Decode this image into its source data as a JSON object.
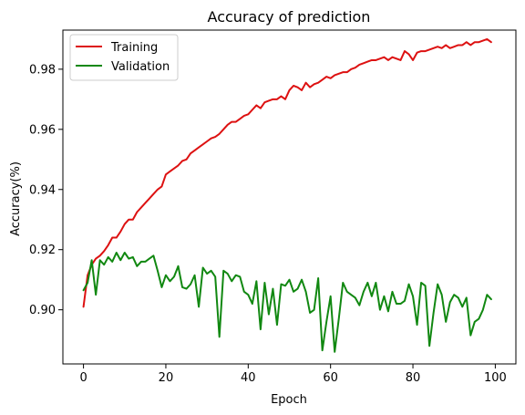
{
  "chart_data": {
    "type": "line",
    "title": "Accuracy of prediction",
    "xlabel": "Epoch",
    "ylabel": "Accuracy(%)",
    "xlim": [
      -5,
      105
    ],
    "ylim": [
      0.882,
      0.993
    ],
    "xticks": [
      0,
      20,
      40,
      60,
      80,
      100
    ],
    "yticks": [
      0.9,
      0.92,
      0.94,
      0.96,
      0.98
    ],
    "ytick_labels": [
      "0.90",
      "0.92",
      "0.94",
      "0.96",
      "0.98"
    ],
    "grid": false,
    "legend_position": "upper-left",
    "series": [
      {
        "name": "Training",
        "color": "#dd1111",
        "x": [
          0,
          1,
          2,
          3,
          4,
          5,
          6,
          7,
          8,
          9,
          10,
          11,
          12,
          13,
          14,
          15,
          16,
          17,
          18,
          19,
          20,
          21,
          22,
          23,
          24,
          25,
          26,
          27,
          28,
          29,
          30,
          31,
          32,
          33,
          34,
          35,
          36,
          37,
          38,
          39,
          40,
          41,
          42,
          43,
          44,
          45,
          46,
          47,
          48,
          49,
          50,
          51,
          52,
          53,
          54,
          55,
          56,
          57,
          58,
          59,
          60,
          61,
          62,
          63,
          64,
          65,
          66,
          67,
          68,
          69,
          70,
          71,
          72,
          73,
          74,
          75,
          76,
          77,
          78,
          79,
          80,
          81,
          82,
          83,
          84,
          85,
          86,
          87,
          88,
          89,
          90,
          91,
          92,
          93,
          94,
          95,
          96,
          97,
          98,
          99
        ],
        "y": [
          0.901,
          0.9115,
          0.915,
          0.917,
          0.918,
          0.9195,
          0.9215,
          0.924,
          0.924,
          0.926,
          0.9285,
          0.93,
          0.93,
          0.9325,
          0.934,
          0.9355,
          0.937,
          0.9385,
          0.94,
          0.941,
          0.945,
          0.946,
          0.947,
          0.948,
          0.9495,
          0.95,
          0.952,
          0.953,
          0.954,
          0.955,
          0.956,
          0.957,
          0.9575,
          0.9585,
          0.96,
          0.9615,
          0.9625,
          0.9625,
          0.9635,
          0.9645,
          0.965,
          0.9665,
          0.968,
          0.967,
          0.969,
          0.9695,
          0.97,
          0.97,
          0.971,
          0.97,
          0.973,
          0.9745,
          0.974,
          0.973,
          0.9755,
          0.974,
          0.975,
          0.9755,
          0.9765,
          0.9775,
          0.977,
          0.978,
          0.9785,
          0.979,
          0.979,
          0.98,
          0.9805,
          0.9815,
          0.982,
          0.9825,
          0.983,
          0.983,
          0.9835,
          0.984,
          0.983,
          0.984,
          0.9835,
          0.983,
          0.986,
          0.985,
          0.983,
          0.9855,
          0.986,
          0.986,
          0.9865,
          0.987,
          0.9875,
          0.987,
          0.988,
          0.987,
          0.9875,
          0.988,
          0.988,
          0.989,
          0.988,
          0.989,
          0.989,
          0.9895,
          0.99,
          0.989
        ]
      },
      {
        "name": "Validation",
        "color": "#118811",
        "x": [
          0,
          1,
          2,
          3,
          4,
          5,
          6,
          7,
          8,
          9,
          10,
          11,
          12,
          13,
          14,
          15,
          16,
          17,
          18,
          19,
          20,
          21,
          22,
          23,
          24,
          25,
          26,
          27,
          28,
          29,
          30,
          31,
          32,
          33,
          34,
          35,
          36,
          37,
          38,
          39,
          40,
          41,
          42,
          43,
          44,
          45,
          46,
          47,
          48,
          49,
          50,
          51,
          52,
          53,
          54,
          55,
          56,
          57,
          58,
          59,
          60,
          61,
          62,
          63,
          64,
          65,
          66,
          67,
          68,
          69,
          70,
          71,
          72,
          73,
          74,
          75,
          76,
          77,
          78,
          79,
          80,
          81,
          82,
          83,
          84,
          85,
          86,
          87,
          88,
          89,
          90,
          91,
          92,
          93,
          94,
          95,
          96,
          97,
          98,
          99
        ],
        "y": [
          0.9065,
          0.909,
          0.9165,
          0.905,
          0.9165,
          0.915,
          0.9175,
          0.916,
          0.919,
          0.9165,
          0.919,
          0.917,
          0.9175,
          0.9145,
          0.916,
          0.916,
          0.917,
          0.918,
          0.913,
          0.9075,
          0.9115,
          0.9095,
          0.911,
          0.9145,
          0.9075,
          0.907,
          0.9085,
          0.9115,
          0.901,
          0.914,
          0.912,
          0.913,
          0.911,
          0.891,
          0.913,
          0.912,
          0.9095,
          0.9115,
          0.911,
          0.906,
          0.905,
          0.902,
          0.9095,
          0.8935,
          0.909,
          0.8985,
          0.907,
          0.895,
          0.9085,
          0.908,
          0.91,
          0.906,
          0.907,
          0.91,
          0.906,
          0.899,
          0.9,
          0.9105,
          0.8865,
          0.896,
          0.9045,
          0.886,
          0.897,
          0.909,
          0.906,
          0.905,
          0.904,
          0.9015,
          0.906,
          0.909,
          0.9045,
          0.909,
          0.9,
          0.9045,
          0.8995,
          0.906,
          0.902,
          0.902,
          0.903,
          0.9085,
          0.9045,
          0.895,
          0.909,
          0.908,
          0.888,
          0.899,
          0.9085,
          0.905,
          0.896,
          0.9025,
          0.905,
          0.904,
          0.901,
          0.904,
          0.8915,
          0.896,
          0.897,
          0.9,
          0.905,
          0.9035
        ]
      }
    ]
  }
}
